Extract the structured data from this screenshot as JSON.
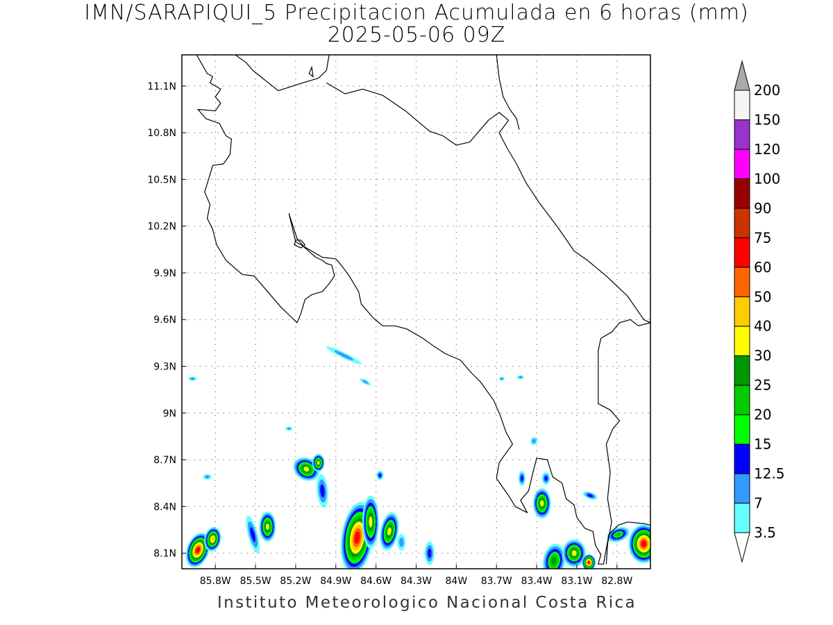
{
  "title": {
    "line1": "IMN/SARAPIQUI_5 Precipitacion Acumulada en 6 horas (mm)",
    "line2": "2025-05-06 09Z"
  },
  "credit": "Instituto Meteorologico Nacional Costa Rica",
  "map": {
    "lon_range": [
      -86.05,
      -82.55
    ],
    "lat_range": [
      8.0,
      11.3
    ],
    "lon_ticks": [
      {
        "value": -85.8,
        "label": "85.8W"
      },
      {
        "value": -85.5,
        "label": "85.5W"
      },
      {
        "value": -85.2,
        "label": "85.2W"
      },
      {
        "value": -84.9,
        "label": "84.9W"
      },
      {
        "value": -84.6,
        "label": "84.6W"
      },
      {
        "value": -84.3,
        "label": "84.3W"
      },
      {
        "value": -84.0,
        "label": "84W"
      },
      {
        "value": -83.7,
        "label": "83.7W"
      },
      {
        "value": -83.4,
        "label": "83.4W"
      },
      {
        "value": -83.1,
        "label": "83.1W"
      },
      {
        "value": -82.8,
        "label": "82.8W"
      }
    ],
    "lat_ticks": [
      {
        "value": 11.1,
        "label": "11.1N"
      },
      {
        "value": 10.8,
        "label": "10.8N"
      },
      {
        "value": 10.5,
        "label": "10.5N"
      },
      {
        "value": 10.2,
        "label": "10.2N"
      },
      {
        "value": 9.9,
        "label": "9.9N"
      },
      {
        "value": 9.6,
        "label": "9.6N"
      },
      {
        "value": 9.3,
        "label": "9.3N"
      },
      {
        "value": 9.0,
        "label": "9N"
      },
      {
        "value": 8.7,
        "label": "8.7N"
      },
      {
        "value": 8.4,
        "label": "8.4N"
      },
      {
        "value": 8.1,
        "label": "8.1N"
      }
    ],
    "grid": "dotted"
  },
  "colorbar": {
    "labels": [
      "3.5",
      "7",
      "12.5",
      "15",
      "20",
      "25",
      "30",
      "40",
      "50",
      "60",
      "75",
      "90",
      "100",
      "120",
      "150",
      "200"
    ],
    "colors": [
      "#66ffff",
      "#3399ff",
      "#0000ff",
      "#00ff00",
      "#00cc00",
      "#009900",
      "#ffff00",
      "#ffcc00",
      "#ff6600",
      "#ff0000",
      "#cc3300",
      "#990000",
      "#ff00ff",
      "#9933cc",
      "#f5f5f5",
      "#aaaaaa"
    ],
    "over_color": "#aaaaaa",
    "under_color": "#ffffff"
  },
  "precip_cells": [
    {
      "lon": -85.93,
      "lat": 8.12,
      "rx": 16,
      "ry": 26,
      "rot": 20,
      "peak": 9
    },
    {
      "lon": -85.82,
      "lat": 8.19,
      "rx": 12,
      "ry": 18,
      "rot": 10,
      "peak": 7
    },
    {
      "lon": -85.41,
      "lat": 8.27,
      "rx": 12,
      "ry": 22,
      "rot": 0,
      "peak": 6
    },
    {
      "lon": -85.52,
      "lat": 8.22,
      "rx": 7,
      "ry": 28,
      "rot": -15,
      "peak": 2
    },
    {
      "lon": -85.12,
      "lat": 8.64,
      "rx": 20,
      "ry": 16,
      "rot": 30,
      "peak": 6
    },
    {
      "lon": -85.03,
      "lat": 8.68,
      "rx": 9,
      "ry": 13,
      "rot": 0,
      "peak": 6
    },
    {
      "lon": -85.0,
      "lat": 8.5,
      "rx": 8,
      "ry": 24,
      "rot": -5,
      "peak": 2
    },
    {
      "lon": -84.74,
      "lat": 8.2,
      "rx": 23,
      "ry": 52,
      "rot": 8,
      "peak": 9
    },
    {
      "lon": -84.64,
      "lat": 8.3,
      "rx": 12,
      "ry": 38,
      "rot": 0,
      "peak": 6
    },
    {
      "lon": -84.5,
      "lat": 8.24,
      "rx": 13,
      "ry": 28,
      "rot": 10,
      "peak": 6
    },
    {
      "lon": -84.41,
      "lat": 8.17,
      "rx": 6,
      "ry": 12,
      "rot": 0,
      "peak": 1
    },
    {
      "lon": -84.2,
      "lat": 8.1,
      "rx": 7,
      "ry": 17,
      "rot": 0,
      "peak": 2
    },
    {
      "lon": -84.57,
      "lat": 8.6,
      "rx": 5,
      "ry": 7,
      "rot": 0,
      "peak": 2
    },
    {
      "lon": -85.86,
      "lat": 8.59,
      "rx": 6,
      "ry": 4,
      "rot": 0,
      "peak": 1
    },
    {
      "lon": -85.97,
      "lat": 9.22,
      "rx": 6,
      "ry": 3,
      "rot": 0,
      "peak": 1
    },
    {
      "lon": -84.84,
      "lat": 9.37,
      "rx": 28,
      "ry": 4,
      "rot": 26,
      "peak": 1
    },
    {
      "lon": -84.68,
      "lat": 9.2,
      "rx": 9,
      "ry": 3,
      "rot": 30,
      "peak": 1
    },
    {
      "lon": -85.25,
      "lat": 8.9,
      "rx": 5,
      "ry": 3,
      "rot": 0,
      "peak": 1
    },
    {
      "lon": -83.66,
      "lat": 9.22,
      "rx": 4,
      "ry": 3,
      "rot": 0,
      "peak": 1
    },
    {
      "lon": -83.52,
      "lat": 9.23,
      "rx": 5,
      "ry": 3,
      "rot": 0,
      "peak": 1
    },
    {
      "lon": -83.51,
      "lat": 8.58,
      "rx": 5,
      "ry": 11,
      "rot": 0,
      "peak": 2
    },
    {
      "lon": -83.36,
      "lat": 8.42,
      "rx": 13,
      "ry": 22,
      "rot": 0,
      "peak": 6
    },
    {
      "lon": -83.33,
      "lat": 8.58,
      "rx": 6,
      "ry": 9,
      "rot": 0,
      "peak": 2
    },
    {
      "lon": -83.27,
      "lat": 8.05,
      "rx": 16,
      "ry": 25,
      "rot": 10,
      "peak": 5
    },
    {
      "lon": -83.12,
      "lat": 8.1,
      "rx": 17,
      "ry": 20,
      "rot": 0,
      "peak": 6
    },
    {
      "lon": -83.01,
      "lat": 8.04,
      "rx": 10,
      "ry": 12,
      "rot": 0,
      "peak": 9
    },
    {
      "lon": -82.79,
      "lat": 8.22,
      "rx": 17,
      "ry": 10,
      "rot": -20,
      "peak": 4
    },
    {
      "lon": -82.6,
      "lat": 8.16,
      "rx": 22,
      "ry": 28,
      "rot": 0,
      "peak": 9
    },
    {
      "lon": -83.0,
      "lat": 8.47,
      "rx": 11,
      "ry": 5,
      "rot": 20,
      "peak": 2
    },
    {
      "lon": -83.42,
      "lat": 8.82,
      "rx": 5,
      "ry": 6,
      "rot": 20,
      "peak": 1
    }
  ],
  "coastlines": [
    [
      [
        -85.94,
        11.3
      ],
      [
        -85.86,
        11.18
      ],
      [
        -85.82,
        11.16
      ],
      [
        -85.84,
        11.12
      ],
      [
        -85.76,
        11.08
      ],
      [
        -85.8,
        11.03
      ],
      [
        -85.76,
        10.99
      ],
      [
        -85.8,
        10.94
      ],
      [
        -85.93,
        10.95
      ],
      [
        -85.87,
        10.89
      ],
      [
        -85.77,
        10.86
      ],
      [
        -85.72,
        10.78
      ],
      [
        -85.68,
        10.76
      ],
      [
        -85.69,
        10.66
      ],
      [
        -85.74,
        10.6
      ],
      [
        -85.82,
        10.59
      ],
      [
        -85.84,
        10.53
      ],
      [
        -85.88,
        10.42
      ],
      [
        -85.84,
        10.34
      ],
      [
        -85.86,
        10.25
      ],
      [
        -85.82,
        10.18
      ],
      [
        -85.79,
        10.08
      ],
      [
        -85.72,
        9.98
      ],
      [
        -85.6,
        9.89
      ],
      [
        -85.51,
        9.88
      ],
      [
        -85.41,
        9.78
      ],
      [
        -85.31,
        9.68
      ],
      [
        -85.25,
        9.63
      ],
      [
        -85.19,
        9.58
      ],
      [
        -85.16,
        9.64
      ],
      [
        -85.13,
        9.73
      ],
      [
        -85.08,
        9.76
      ],
      [
        -85.0,
        9.78
      ],
      [
        -84.95,
        9.83
      ],
      [
        -84.91,
        9.88
      ],
      [
        -84.93,
        9.95
      ],
      [
        -84.97,
        9.96
      ],
      [
        -85.0,
        9.98
      ],
      [
        -85.05,
        10.0
      ],
      [
        -85.13,
        10.06
      ],
      [
        -85.19,
        10.12
      ],
      [
        -85.22,
        10.2
      ],
      [
        -85.25,
        10.28
      ],
      [
        -85.2,
        10.1
      ],
      [
        -85.1,
        10.05
      ],
      [
        -85.0,
        10.0
      ],
      [
        -84.9,
        9.99
      ],
      [
        -84.86,
        9.95
      ],
      [
        -84.8,
        9.88
      ],
      [
        -84.73,
        9.78
      ],
      [
        -84.71,
        9.7
      ],
      [
        -84.66,
        9.65
      ],
      [
        -84.62,
        9.61
      ],
      [
        -84.55,
        9.56
      ],
      [
        -84.46,
        9.56
      ],
      [
        -84.37,
        9.54
      ],
      [
        -84.25,
        9.48
      ],
      [
        -84.17,
        9.43
      ],
      [
        -84.08,
        9.38
      ],
      [
        -83.97,
        9.34
      ],
      [
        -83.89,
        9.26
      ],
      [
        -83.82,
        9.2
      ],
      [
        -83.72,
        9.08
      ],
      [
        -83.67,
        8.98
      ],
      [
        -83.63,
        8.88
      ],
      [
        -83.58,
        8.8
      ],
      [
        -83.64,
        8.73
      ],
      [
        -83.68,
        8.68
      ],
      [
        -83.7,
        8.58
      ],
      [
        -83.61,
        8.47
      ],
      [
        -83.56,
        8.4
      ],
      [
        -83.47,
        8.36
      ],
      [
        -83.52,
        8.44
      ],
      [
        -83.46,
        8.5
      ],
      [
        -83.43,
        8.61
      ],
      [
        -83.4,
        8.71
      ],
      [
        -83.32,
        8.7
      ],
      [
        -83.28,
        8.59
      ],
      [
        -83.21,
        8.55
      ],
      [
        -83.18,
        8.45
      ],
      [
        -83.12,
        8.41
      ],
      [
        -83.1,
        8.33
      ],
      [
        -83.04,
        8.26
      ],
      [
        -82.98,
        8.24
      ],
      [
        -82.96,
        8.15
      ],
      [
        -82.92,
        8.09
      ],
      [
        -82.94,
        8.03
      ],
      [
        -82.9,
        8.03
      ],
      [
        -82.89,
        8.08
      ],
      [
        -82.86,
        8.22
      ],
      [
        -82.79,
        8.28
      ],
      [
        -82.72,
        8.3
      ],
      [
        -82.6,
        8.29
      ],
      [
        -82.55,
        8.28
      ]
    ],
    [
      [
        -84.95,
        11.3
      ],
      [
        -84.97,
        11.2
      ],
      [
        -85.03,
        11.15
      ],
      [
        -85.15,
        11.12
      ],
      [
        -85.33,
        11.07
      ],
      [
        -85.52,
        11.2
      ],
      [
        -85.57,
        11.25
      ],
      [
        -85.65,
        11.3
      ]
    ],
    [
      [
        -84.97,
        11.12
      ],
      [
        -84.83,
        11.05
      ],
      [
        -84.7,
        11.08
      ],
      [
        -84.55,
        11.04
      ],
      [
        -84.38,
        10.94
      ],
      [
        -84.2,
        10.81
      ],
      [
        -84.1,
        10.78
      ],
      [
        -84.0,
        10.72
      ],
      [
        -83.9,
        10.74
      ],
      [
        -83.76,
        10.88
      ],
      [
        -83.68,
        10.93
      ],
      [
        -83.61,
        10.88
      ],
      [
        -83.68,
        10.8
      ],
      [
        -83.62,
        10.7
      ],
      [
        -83.55,
        10.6
      ],
      [
        -83.48,
        10.48
      ],
      [
        -83.38,
        10.35
      ],
      [
        -83.24,
        10.19
      ],
      [
        -83.12,
        10.04
      ],
      [
        -83.02,
        9.98
      ],
      [
        -82.88,
        9.88
      ],
      [
        -82.72,
        9.75
      ],
      [
        -82.6,
        9.6
      ],
      [
        -82.55,
        9.58
      ]
    ],
    [
      [
        -83.7,
        11.3
      ],
      [
        -83.68,
        11.15
      ],
      [
        -83.65,
        11.03
      ],
      [
        -83.6,
        10.95
      ],
      [
        -83.55,
        10.89
      ],
      [
        -83.53,
        10.82
      ]
    ],
    [
      [
        -82.55,
        9.58
      ],
      [
        -82.64,
        9.56
      ],
      [
        -82.7,
        9.6
      ],
      [
        -82.78,
        9.58
      ],
      [
        -82.84,
        9.52
      ],
      [
        -82.92,
        9.48
      ],
      [
        -82.94,
        9.4
      ],
      [
        -82.94,
        9.26
      ],
      [
        -82.94,
        9.06
      ],
      [
        -82.85,
        9.02
      ],
      [
        -82.78,
        8.95
      ],
      [
        -82.83,
        8.9
      ],
      [
        -82.88,
        8.8
      ],
      [
        -82.85,
        8.62
      ],
      [
        -82.87,
        8.45
      ],
      [
        -82.84,
        8.3
      ],
      [
        -82.87,
        8.16
      ],
      [
        -82.88,
        8.03
      ]
    ]
  ],
  "islands": [
    [
      [
        -85.21,
        10.08
      ],
      [
        -85.16,
        10.06
      ],
      [
        -85.13,
        10.08
      ],
      [
        -85.16,
        10.11
      ],
      [
        -85.2,
        10.11
      ]
    ],
    [
      [
        -85.1,
        11.18
      ],
      [
        -85.07,
        11.16
      ],
      [
        -85.08,
        11.22
      ]
    ]
  ]
}
